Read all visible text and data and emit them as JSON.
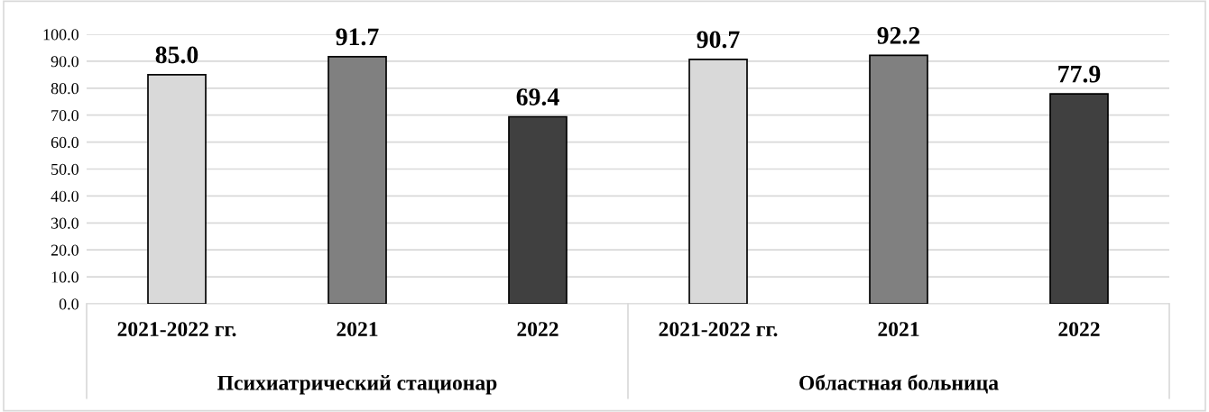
{
  "chart_data": {
    "type": "bar",
    "categories": [
      "2021-2022 гг.",
      "2021",
      "2022",
      "2021-2022 гг.",
      "2021",
      "2022"
    ],
    "values": [
      85.0,
      91.7,
      69.4,
      90.7,
      92.2,
      77.9
    ],
    "colors": [
      "#d9d9d9",
      "#808080",
      "#404040",
      "#d9d9d9",
      "#808080",
      "#404040"
    ],
    "ylim": [
      0,
      100
    ],
    "yticks": [
      {
        "value": 0,
        "label": "0.0"
      },
      {
        "value": 10,
        "label": "10.0"
      },
      {
        "value": 20,
        "label": "20.0"
      },
      {
        "value": 30,
        "label": "30.0"
      },
      {
        "value": 40,
        "label": "40.0"
      },
      {
        "value": 50,
        "label": "50.0"
      },
      {
        "value": 60,
        "label": "60.0"
      },
      {
        "value": 70,
        "label": "70.0"
      },
      {
        "value": 80,
        "label": "80.0"
      },
      {
        "value": 90,
        "label": "90.0"
      },
      {
        "value": 100,
        "label": "100.0"
      }
    ],
    "grid": "y",
    "value_labels": [
      "85.0",
      "91.7",
      "69.4",
      "90.7",
      "92.2",
      "77.9"
    ],
    "legend": false,
    "annotations": [
      "Психиатрический стационар",
      "Областная больница"
    ]
  }
}
